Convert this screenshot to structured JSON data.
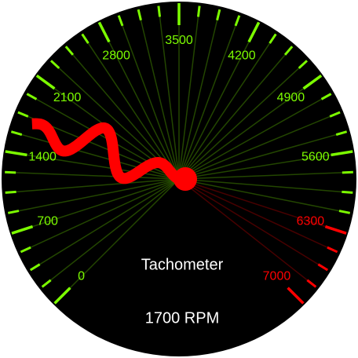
{
  "chart_data": {
    "type": "gauge",
    "title": "Tachometer",
    "value": 1700,
    "value_label": "1700 RPM",
    "lim": [
      0,
      7000
    ],
    "ticks": [
      0,
      700,
      1400,
      2100,
      2800,
      3500,
      4200,
      4900,
      5600,
      6300,
      7000
    ],
    "color": "#7cfc00",
    "redline_from": 6300,
    "redline_color": "#ff0000",
    "needle_color": "#ff0000"
  }
}
